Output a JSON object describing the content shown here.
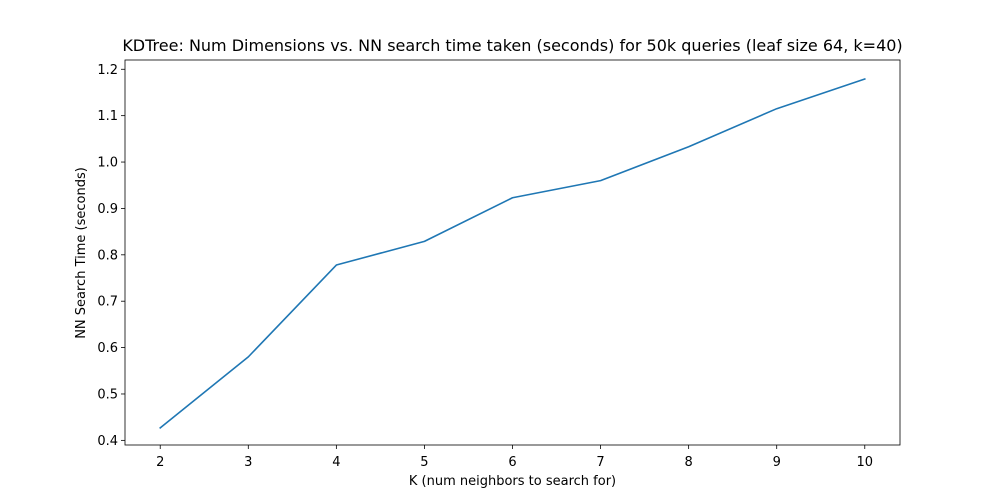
{
  "chart_data": {
    "type": "line",
    "title": "KDTree: Num Dimensions vs. NN search time taken (seconds) for 50k queries (leaf size 64, k=40)",
    "xlabel": "K (num neighbors to search for)",
    "ylabel": "NN Search Time (seconds)",
    "xlim": [
      1.6,
      10.4
    ],
    "ylim": [
      0.39,
      1.22
    ],
    "xticks": [
      2,
      3,
      4,
      5,
      6,
      7,
      8,
      9,
      10
    ],
    "yticks": [
      0.4,
      0.5,
      0.6,
      0.7,
      0.8,
      0.9,
      1.0,
      1.1,
      1.2
    ],
    "ytick_labels": [
      "0.4",
      "0.5",
      "0.6",
      "0.7",
      "0.8",
      "0.9",
      "1.0",
      "1.1",
      "1.2"
    ],
    "grid": false,
    "series": [
      {
        "x": [
          2,
          3,
          4,
          5,
          6,
          7,
          8,
          9,
          10
        ],
        "values": [
          0.427,
          0.58,
          0.778,
          0.829,
          0.923,
          0.96,
          1.033,
          1.115,
          1.179
        ],
        "color": "#1f77b4"
      }
    ]
  }
}
